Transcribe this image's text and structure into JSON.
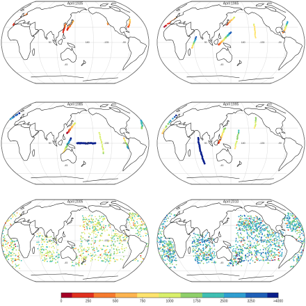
{
  "panels": [
    {
      "title": "April 1935",
      "obs_density": 1,
      "mode": "coastal-1935"
    },
    {
      "title": "April 1965",
      "obs_density": 2,
      "mode": "tracks-1965"
    },
    {
      "title": "April 1985",
      "obs_density": 3,
      "mode": "tracks-1985"
    },
    {
      "title": "April 1995",
      "obs_density": 3,
      "mode": "tracks-1995"
    },
    {
      "title": "April 2005",
      "obs_density": 5,
      "mode": "global-2005"
    },
    {
      "title": "April 2010",
      "obs_density": 6,
      "mode": "global-2010"
    }
  ],
  "grid_labels": {
    "lon": [
      "90",
      "180",
      "-135",
      "-90"
    ],
    "lat": [
      "-45"
    ]
  },
  "colorbar": {
    "ticks": [
      "0",
      "250",
      "500",
      "750",
      "1000",
      "1750",
      "2500",
      "3250",
      ">4000"
    ],
    "colors": [
      "#a50026",
      "#e0301e",
      "#f67b2e",
      "#fdb44f",
      "#fee46e",
      "#d9ef6b",
      "#8fd06a",
      "#3fbfb3",
      "#2f9ed1",
      "#1e5fb8",
      "#0a1f8c"
    ]
  }
}
